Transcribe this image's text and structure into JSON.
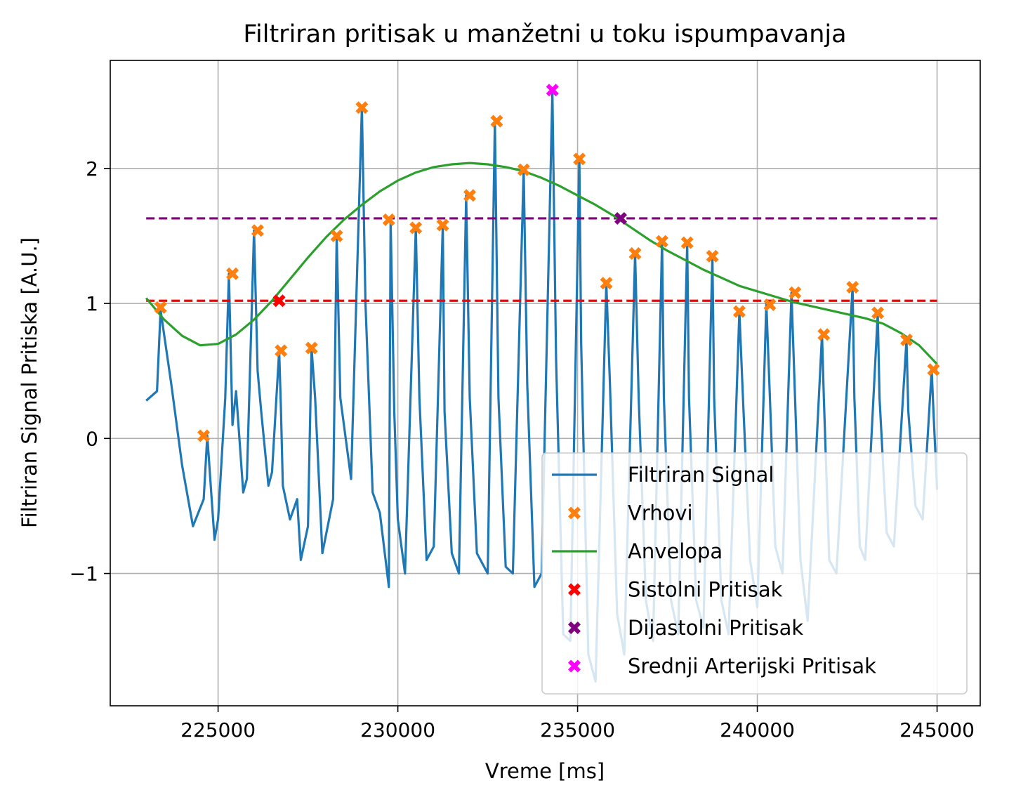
{
  "chart_data": {
    "type": "line",
    "title": "Filtriran pritisak u manžetni u toku ispumpavanja",
    "xlabel": "Vreme [ms]",
    "ylabel": "Filtriran Signal Pritiska [A.U.]",
    "xlim": [
      222000,
      246200
    ],
    "ylim": [
      -1.98,
      2.8
    ],
    "x_ticks": [
      225000,
      230000,
      235000,
      240000,
      245000
    ],
    "y_ticks": [
      -1,
      0,
      1,
      2
    ],
    "x_tick_labels": [
      "225000",
      "230000",
      "235000",
      "240000",
      "245000"
    ],
    "y_tick_labels": [
      "−1",
      "0",
      "1",
      "2"
    ],
    "grid": true,
    "legend_position": "lower-right",
    "colors": {
      "signal": "#1f77b4",
      "peaks": "#ff7f0e",
      "envelope": "#2ca02c",
      "systolic": "#ff0000",
      "diastolic": "#800080",
      "map": "#ff00ff"
    },
    "signal": {
      "name": "Filtriran Signal",
      "x": [
        223000,
        223300,
        223400,
        223700,
        224000,
        224300,
        224600,
        224700,
        224900,
        225000,
        225200,
        225300,
        225400,
        225500,
        225700,
        225800,
        226000,
        226100,
        226200,
        226400,
        226500,
        226700,
        226750,
        226800,
        227000,
        227200,
        227300,
        227500,
        227600,
        227700,
        227900,
        228200,
        228300,
        228400,
        228700,
        229000,
        229100,
        229300,
        229500,
        229750,
        229800,
        229900,
        230000,
        230200,
        230500,
        230600,
        230800,
        231000,
        231250,
        231300,
        231500,
        231700,
        231900,
        232000,
        232200,
        232500,
        232700,
        232800,
        233000,
        233200,
        233500,
        233600,
        233800,
        234000,
        234300,
        234400,
        234600,
        234800,
        235050,
        235100,
        235300,
        235500,
        235800,
        235900,
        236100,
        236300,
        236600,
        236700,
        236900,
        237100,
        237350,
        237400,
        237600,
        237800,
        238050,
        238100,
        238300,
        238500,
        238750,
        238800,
        239000,
        239200,
        239500,
        239600,
        239800,
        240000,
        240250,
        240350,
        240500,
        240700,
        240950,
        241050,
        241200,
        241400,
        241800,
        241850,
        242000,
        242200,
        242650,
        242700,
        242850,
        243000,
        243350,
        243400,
        243600,
        243800,
        244150,
        244200,
        244400,
        244600,
        244850,
        244900,
        245000
      ],
      "y": [
        0.28,
        0.35,
        0.95,
        0.4,
        -0.2,
        -0.65,
        -0.45,
        0.02,
        -0.75,
        -0.6,
        0.3,
        1.22,
        0.1,
        0.35,
        -0.4,
        -0.3,
        1.54,
        0.5,
        0.2,
        -0.35,
        -0.25,
        0.65,
        0.2,
        -0.35,
        -0.6,
        -0.45,
        -0.9,
        -0.65,
        0.67,
        0.3,
        -0.85,
        -0.45,
        1.5,
        0.3,
        -0.3,
        2.45,
        1.0,
        -0.4,
        -0.55,
        -1.1,
        1.62,
        0.2,
        -0.6,
        -1.0,
        1.56,
        0.3,
        -0.9,
        -0.8,
        1.58,
        0.2,
        -0.85,
        -1.0,
        1.8,
        0.3,
        -0.85,
        -1.0,
        2.35,
        0.3,
        -0.95,
        -1.0,
        1.99,
        0.4,
        -1.1,
        -1.0,
        2.57,
        0.6,
        -1.45,
        -1.5,
        2.07,
        0.7,
        -1.6,
        -1.8,
        1.15,
        0.4,
        -1.3,
        -1.6,
        1.37,
        0.3,
        -1.2,
        -1.5,
        1.46,
        0.3,
        -1.2,
        -1.45,
        1.45,
        0.3,
        -1.2,
        -1.4,
        1.35,
        0.3,
        -1.2,
        -1.45,
        0.94,
        0.3,
        -0.9,
        -1.25,
        1.0,
        0.3,
        -0.8,
        -1.0,
        1.08,
        0.3,
        -0.9,
        -1.35,
        0.77,
        0.3,
        -0.9,
        -1.0,
        1.12,
        0.3,
        -0.8,
        -0.9,
        0.93,
        0.3,
        -0.7,
        -0.8,
        0.73,
        0.2,
        -0.5,
        -0.6,
        0.51,
        0.2,
        -0.38
      ]
    },
    "peaks": {
      "name": "Vrhovi",
      "x": [
        223400,
        224600,
        225400,
        226100,
        226750,
        227600,
        228300,
        229000,
        229750,
        230500,
        231250,
        232000,
        232750,
        233500,
        235050,
        235800,
        236600,
        237350,
        238050,
        238750,
        239500,
        240350,
        241050,
        241850,
        242650,
        243350,
        244150,
        244900
      ],
      "y": [
        0.97,
        0.02,
        1.22,
        1.54,
        0.65,
        0.67,
        1.5,
        2.45,
        1.62,
        1.56,
        1.58,
        1.8,
        2.35,
        1.99,
        2.07,
        1.15,
        1.37,
        1.46,
        1.45,
        1.35,
        0.94,
        0.99,
        1.08,
        0.77,
        1.12,
        0.93,
        0.73,
        0.51
      ]
    },
    "envelope": {
      "name": "Anvelopa",
      "x": [
        223000,
        223500,
        224000,
        224500,
        225000,
        225500,
        226000,
        226500,
        227000,
        227500,
        228000,
        228500,
        229000,
        229500,
        230000,
        230500,
        231000,
        231500,
        232000,
        232500,
        233000,
        233500,
        234000,
        234500,
        235000,
        235500,
        236000,
        236500,
        237000,
        237500,
        238000,
        238500,
        239000,
        239500,
        240000,
        240500,
        241000,
        241500,
        242000,
        242500,
        243000,
        243500,
        244000,
        244500,
        245000
      ],
      "y": [
        1.04,
        0.88,
        0.76,
        0.69,
        0.7,
        0.77,
        0.88,
        1.02,
        1.18,
        1.34,
        1.49,
        1.62,
        1.73,
        1.83,
        1.91,
        1.97,
        2.01,
        2.03,
        2.04,
        2.03,
        2.01,
        1.98,
        1.93,
        1.87,
        1.8,
        1.73,
        1.65,
        1.56,
        1.47,
        1.39,
        1.32,
        1.25,
        1.19,
        1.13,
        1.09,
        1.05,
        1.01,
        0.98,
        0.95,
        0.92,
        0.89,
        0.85,
        0.78,
        0.69,
        0.55
      ]
    },
    "systolic": {
      "name": "Sistolni Pritisak",
      "x": 226700,
      "y": 1.02,
      "line_y": 1.02,
      "line_x": [
        223000,
        245000
      ]
    },
    "diastolic": {
      "name": "Dijastolni Pritisak",
      "x": 236200,
      "y": 1.63,
      "line_y": 1.63,
      "line_x": [
        223000,
        245000
      ]
    },
    "map": {
      "name": "Srednji Arterijski Pritisak",
      "x": 234300,
      "y": 2.58
    },
    "legend": [
      {
        "label": "Filtriran Signal",
        "marker": "line",
        "color": "#1f77b4"
      },
      {
        "label": "Vrhovi",
        "marker": "x",
        "color": "#ff7f0e"
      },
      {
        "label": "Anvelopa",
        "marker": "line",
        "color": "#2ca02c"
      },
      {
        "label": "Sistolni Pritisak",
        "marker": "x",
        "color": "#ff0000"
      },
      {
        "label": "Dijastolni Pritisak",
        "marker": "x",
        "color": "#800080"
      },
      {
        "label": "Srednji Arterijski Pritisak",
        "marker": "x",
        "color": "#ff00ff"
      }
    ]
  }
}
